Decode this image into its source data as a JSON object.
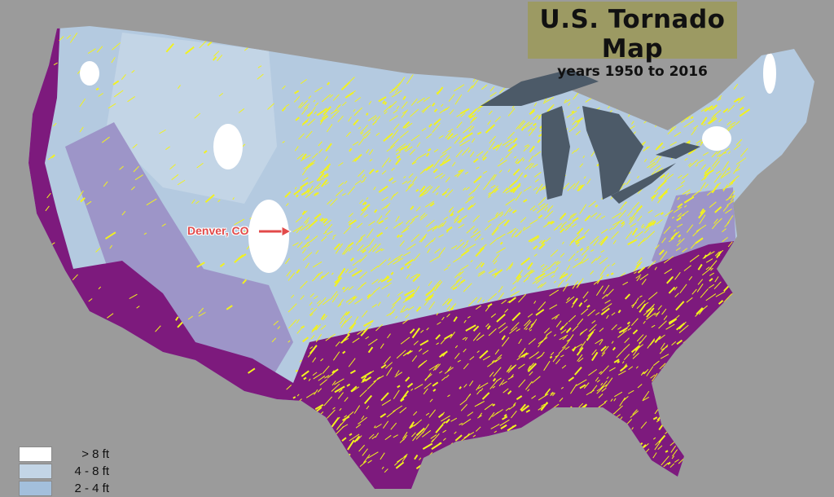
{
  "title": "U.S. Tornado Map",
  "subtitle": "years 1950 to 2016",
  "annotation": {
    "label": "Denver, CO",
    "color": "#e24a4a"
  },
  "legend": [
    {
      "label": "> 8 ft",
      "color": "#ffffff"
    },
    {
      "label": "4 - 8 ft",
      "color": "#c3d5e6"
    },
    {
      "label": "2 - 4 ft",
      "color": "#a3bfdc"
    }
  ],
  "colors": {
    "background": "#9b9b9b",
    "title_box": "#9c9a63",
    "purple_zone": "#7d1a7d",
    "lavender_zone": "#9d95c8",
    "tornado_tracks": "#f2f21e",
    "great_lakes": "#4c5a68"
  }
}
